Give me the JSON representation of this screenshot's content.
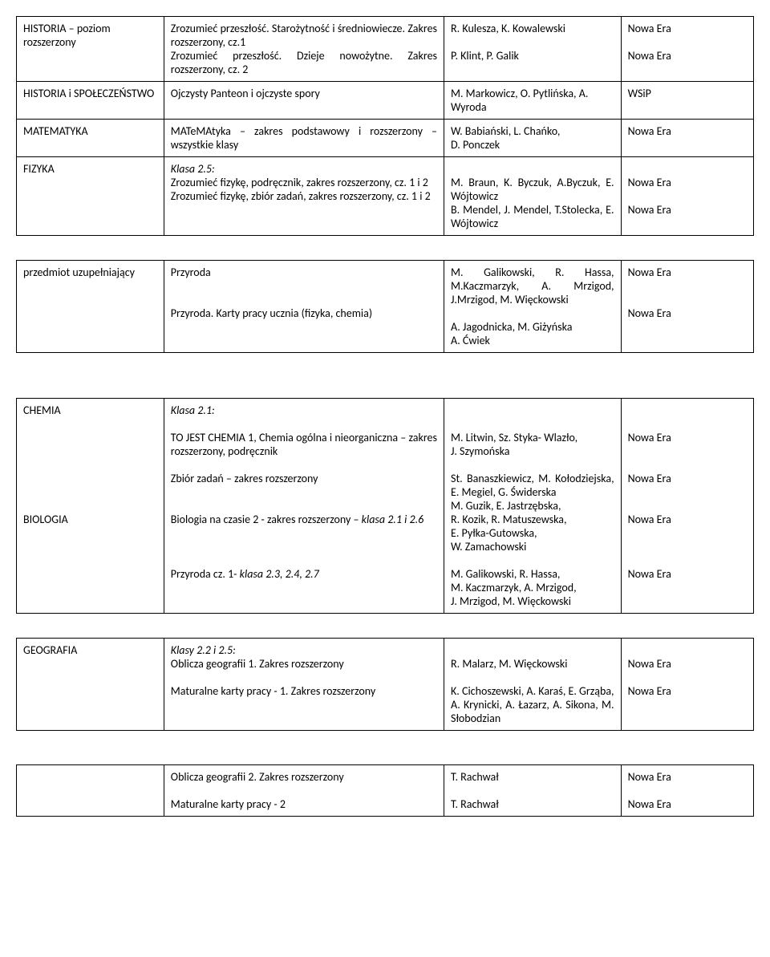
{
  "rows": [
    {
      "subject": {
        "lines": [
          "HISTORIA – poziom",
          "rozszerzony"
        ],
        "justify": true
      },
      "book": {
        "lines": [
          "Zrozumieć przeszłość. Starożytność i średniowiecze. Zakres rozszerzony, cz.1",
          "Zrozumieć przeszłość. Dzieje nowożytne. Zakres rozszerzony, cz. 2"
        ],
        "justify": true
      },
      "author": {
        "lines": [
          "R. Kulesza, K. Kowalewski",
          "",
          "P. Klint, P. Galik"
        ]
      },
      "pub": {
        "lines": [
          "Nowa Era",
          "",
          "Nowa Era"
        ]
      }
    },
    {
      "subject": {
        "lines": [
          "HISTORIA i SPOŁECZEŃSTWO"
        ]
      },
      "book": {
        "lines": [
          "Ojczysty Panteon i ojczyste spory"
        ]
      },
      "author": {
        "lines": [
          "M. Markowicz, O. Pytlińska, A. Wyroda"
        ]
      },
      "pub": {
        "lines": [
          "WSiP"
        ]
      }
    },
    {
      "subject": {
        "lines": [
          "MATEMATYKA"
        ]
      },
      "book": {
        "lines": [
          "MATeMAtyka – zakres podstawowy i rozszerzony – wszystkie klasy"
        ],
        "justify": true
      },
      "author": {
        "lines": [
          "W. Babiański, L. Chańko,",
          "D. Ponczek"
        ]
      },
      "pub": {
        "lines": [
          "Nowa Era"
        ]
      }
    },
    {
      "subject": {
        "lines": [
          "FIZYKA"
        ]
      },
      "book": {
        "italicFirst": true,
        "lines": [
          "Klasa 2.5:",
          "Zrozumieć fizykę, podręcznik, zakres rozszerzony, cz. 1 i 2",
          "Zrozumieć fizykę, zbiór zadań, zakres rozszerzony, cz. 1 i 2"
        ],
        "justify": true
      },
      "author": {
        "lines": [
          "",
          "M. Braun, K. Byczuk, A.Byczuk, E. Wójtowicz",
          "B. Mendel, J. Mendel, T.Stolecka, E. Wójtowicz"
        ],
        "justify": true
      },
      "pub": {
        "lines": [
          "",
          "Nowa Era",
          "",
          "Nowa Era"
        ]
      }
    },
    {
      "spacer": "blank"
    },
    {
      "subject": {
        "lines": [
          "przedmiot uzupełniający"
        ]
      },
      "book": {
        "lines": [
          "Przyroda",
          "",
          "",
          "Przyroda. Karty pracy ucznia (fizyka, chemia)"
        ],
        "justify": true
      },
      "author": {
        "lines": [
          "M. Galikowski, R. Hassa, M.Kaczmarzyk, A. Mrzigod, J.Mrzigod, M. Więckowski",
          "",
          "A. Jagodnicka, M. Giżyńska",
          "A. Ćwiek"
        ],
        "justify": true
      },
      "pub": {
        "lines": [
          "Nowa Era",
          "",
          "",
          "Nowa Era"
        ]
      }
    },
    {
      "spacer": "sp-lg"
    },
    {
      "subject": {
        "lines": [
          "CHEMIA",
          "",
          "",
          "",
          "",
          "",
          "",
          "",
          "BIOLOGIA"
        ]
      },
      "book": {
        "italicFirst": true,
        "lines": [
          "Klasa 2.1:",
          "",
          "TO JEST CHEMIA 1, Chemia ogólna i nieorganiczna – zakres rozszerzony, podręcznik",
          "",
          "Zbiór zadań – zakres rozszerzony",
          "",
          "",
          "Biologia na czasie 2 - zakres rozszerzony – klasa 2.1 i 2.6",
          "",
          "",
          "",
          "Przyroda cz. 1- klasa 2.3, 2.4, 2.7"
        ],
        "justify": true,
        "italicInline": [
          {
            "idx": 7,
            "text": "klasa 2.1 i 2.6"
          },
          {
            "idx": 11,
            "text": "klasa 2.3, 2.4, 2.7"
          }
        ]
      },
      "author": {
        "lines": [
          "",
          "",
          "M. Litwin, Sz. Styka- Wlazło,",
          "J. Szymońska",
          "",
          "St. Banaszkiewicz, M. Kołodziejska, E. Megiel, G. Świderska",
          "M. Guzik, E. Jastrzębska,",
          "R. Kozik, R. Matuszewska,",
          "E. Pyłka-Gutowska,",
          "W. Zamachowski",
          "",
          "M. Galikowski, R. Hassa,",
          "M. Kaczmarzyk, A. Mrzigod,",
          "J. Mrzigod, M. Więckowski"
        ],
        "justifyIdx": [
          5
        ]
      },
      "pub": {
        "lines": [
          "",
          "",
          "Nowa Era",
          "",
          "",
          "Nowa Era",
          "",
          "",
          "Nowa Era",
          "",
          "",
          "",
          "Nowa Era"
        ]
      }
    },
    {
      "spacer": "blank"
    },
    {
      "subject": {
        "lines": [
          "GEOGRAFIA"
        ]
      },
      "book": {
        "italicFirst": true,
        "lines": [
          "Klasy 2.2 i 2.5:",
          "Oblicza geografii 1. Zakres rozszerzony",
          "",
          "Maturalne karty pracy - 1. Zakres rozszerzony"
        ],
        "justify": true
      },
      "author": {
        "lines": [
          "",
          "R. Malarz, M. Więckowski",
          "",
          "K. Cichoszewski, A. Karaś, E. Grząba, A. Krynicki, A. Łazarz, A. Sikona, M. Słobodzian"
        ],
        "justify": true
      },
      "pub": {
        "lines": [
          "",
          "Nowa Era",
          "",
          "Nowa Era"
        ]
      }
    },
    {
      "spacer": "sp-md"
    },
    {
      "subject": {
        "lines": [
          ""
        ]
      },
      "book": {
        "lines": [
          "Oblicza geografii 2. Zakres rozszerzony",
          "",
          "Maturalne karty pracy - 2"
        ]
      },
      "author": {
        "lines": [
          "T. Rachwał",
          "",
          "T. Rachwał"
        ]
      },
      "pub": {
        "lines": [
          "Nowa Era",
          "",
          "Nowa Era"
        ]
      }
    }
  ]
}
